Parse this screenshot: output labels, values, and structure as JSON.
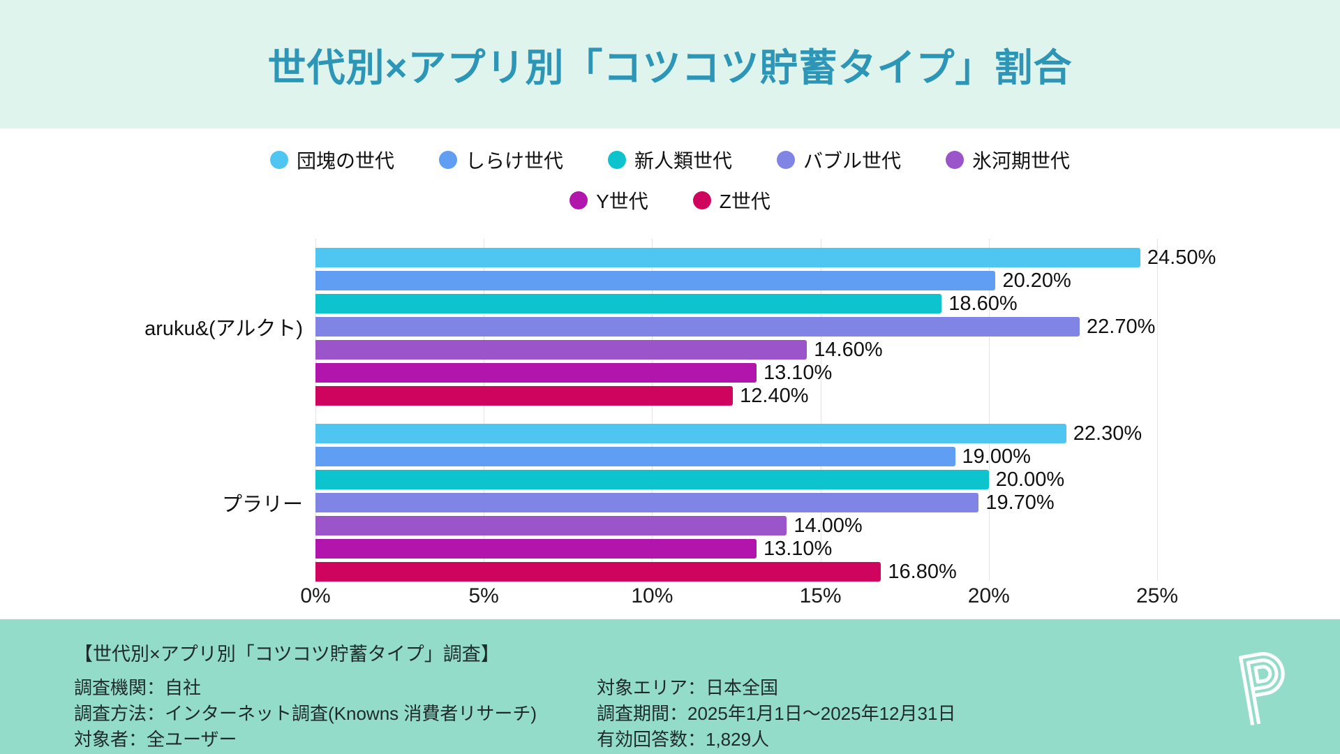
{
  "header": {
    "title": "世代別×アプリ別「コツコツ貯蓄タイプ」割合"
  },
  "chart_data": {
    "type": "bar",
    "orientation": "horizontal",
    "title": "世代別×アプリ別「コツコツ貯蓄タイプ」割合",
    "categories": [
      "aruku&(アルクト)",
      "プラリー"
    ],
    "series": [
      {
        "name": "団塊の世代",
        "color": "#4fc5f2",
        "values": [
          24.5,
          22.3
        ],
        "labels": [
          "24.50%",
          "22.30%"
        ]
      },
      {
        "name": "しらけ世代",
        "color": "#5f9ef2",
        "values": [
          20.2,
          19.0
        ],
        "labels": [
          "20.20%",
          "19.00%"
        ]
      },
      {
        "name": "新人類世代",
        "color": "#0dc3cd",
        "values": [
          18.6,
          20.0
        ],
        "labels": [
          "18.60%",
          "20.00%"
        ]
      },
      {
        "name": "バブル世代",
        "color": "#8085e5",
        "values": [
          22.7,
          19.7
        ],
        "labels": [
          "22.70%",
          "19.70%"
        ]
      },
      {
        "name": "氷河期世代",
        "color": "#9c54cb",
        "values": [
          14.6,
          14.0
        ],
        "labels": [
          "14.60%",
          "14.00%"
        ]
      },
      {
        "name": "Y世代",
        "color": "#b115ab",
        "values": [
          13.1,
          13.1
        ],
        "labels": [
          "13.10%",
          "13.10%"
        ]
      },
      {
        "name": "Z世代",
        "color": "#ce045f",
        "values": [
          12.4,
          16.8
        ],
        "labels": [
          "12.40%",
          "16.80%"
        ]
      }
    ],
    "x_ticks": [
      "0%",
      "5%",
      "10%",
      "15%",
      "20%",
      "25%"
    ],
    "xlim": [
      0,
      25
    ],
    "grid": true,
    "legend_position": "top",
    "legend_rows": [
      [
        0,
        1,
        2,
        3,
        4
      ],
      [
        5,
        6
      ]
    ]
  },
  "footer": {
    "survey_title": "【世代別×アプリ別「コツコツ貯蓄タイプ」調査】",
    "left_lines": [
      "調査機関：自社",
      "調査方法：インターネット調査(Knowns 消費者リサーチ)",
      "対象者：全ユーザー"
    ],
    "right_lines": [
      "対象エリア：日本全国",
      "調査期間：2025年1月1日〜2025年12月31日",
      "有効回答数：1,829人"
    ],
    "logo_letter": "P"
  },
  "colors": {
    "header_bg": "#e0f4ee",
    "footer_bg": "#94dcca",
    "title_text": "#2d96b6",
    "gridline": "#e3e3e3",
    "logo_stroke": "#ffffff"
  }
}
